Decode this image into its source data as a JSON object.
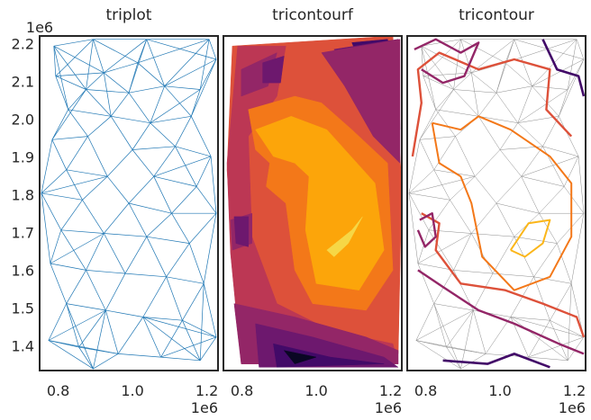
{
  "chart_data": [
    {
      "type": "triplot",
      "title": "triplot",
      "x_tick_labels": [
        "0.8",
        "1.0",
        "1.2"
      ],
      "x_ticks": [
        0.8,
        1.0,
        1.2
      ],
      "x_offset_label": "1e6",
      "y_tick_labels": [
        "1.4",
        "1.5",
        "1.6",
        "1.7",
        "1.8",
        "1.9",
        "2.0",
        "2.1",
        "2.2"
      ],
      "y_ticks": [
        1.4,
        1.5,
        1.6,
        1.7,
        1.8,
        1.9,
        2.0,
        2.1,
        2.2
      ],
      "y_offset_label": "1e6",
      "xlim": [
        0.75,
        1.23
      ],
      "ylim": [
        1.335,
        2.22
      ],
      "mesh_color": "#1f77b4"
    },
    {
      "type": "tricontourf",
      "title": "tricontourf",
      "x_tick_labels": [
        "0.8",
        "1.0",
        "1.2"
      ],
      "x_ticks": [
        0.8,
        1.0,
        1.2
      ],
      "x_offset_label": "1e6",
      "xlim": [
        0.75,
        1.23
      ],
      "ylim": [
        1.335,
        2.22
      ],
      "colormap": "inferno",
      "level_colors": [
        "#0a0724",
        "#420a68",
        "#6d186e",
        "#932667",
        "#bc3754",
        "#dd513a",
        "#f37819",
        "#fca50a",
        "#f6d746"
      ]
    },
    {
      "type": "tricontour",
      "title": "tricontour",
      "x_tick_labels": [
        "0.8",
        "1.0",
        "1.2"
      ],
      "x_ticks": [
        0.8,
        1.0,
        1.2
      ],
      "x_offset_label": "1e6",
      "xlim": [
        0.75,
        1.23
      ],
      "ylim": [
        1.335,
        2.22
      ],
      "mesh_color": "#8c8c8c",
      "line_colors": [
        "#420a68",
        "#932667",
        "#dd513a",
        "#f37819",
        "#fbb61a"
      ]
    }
  ]
}
